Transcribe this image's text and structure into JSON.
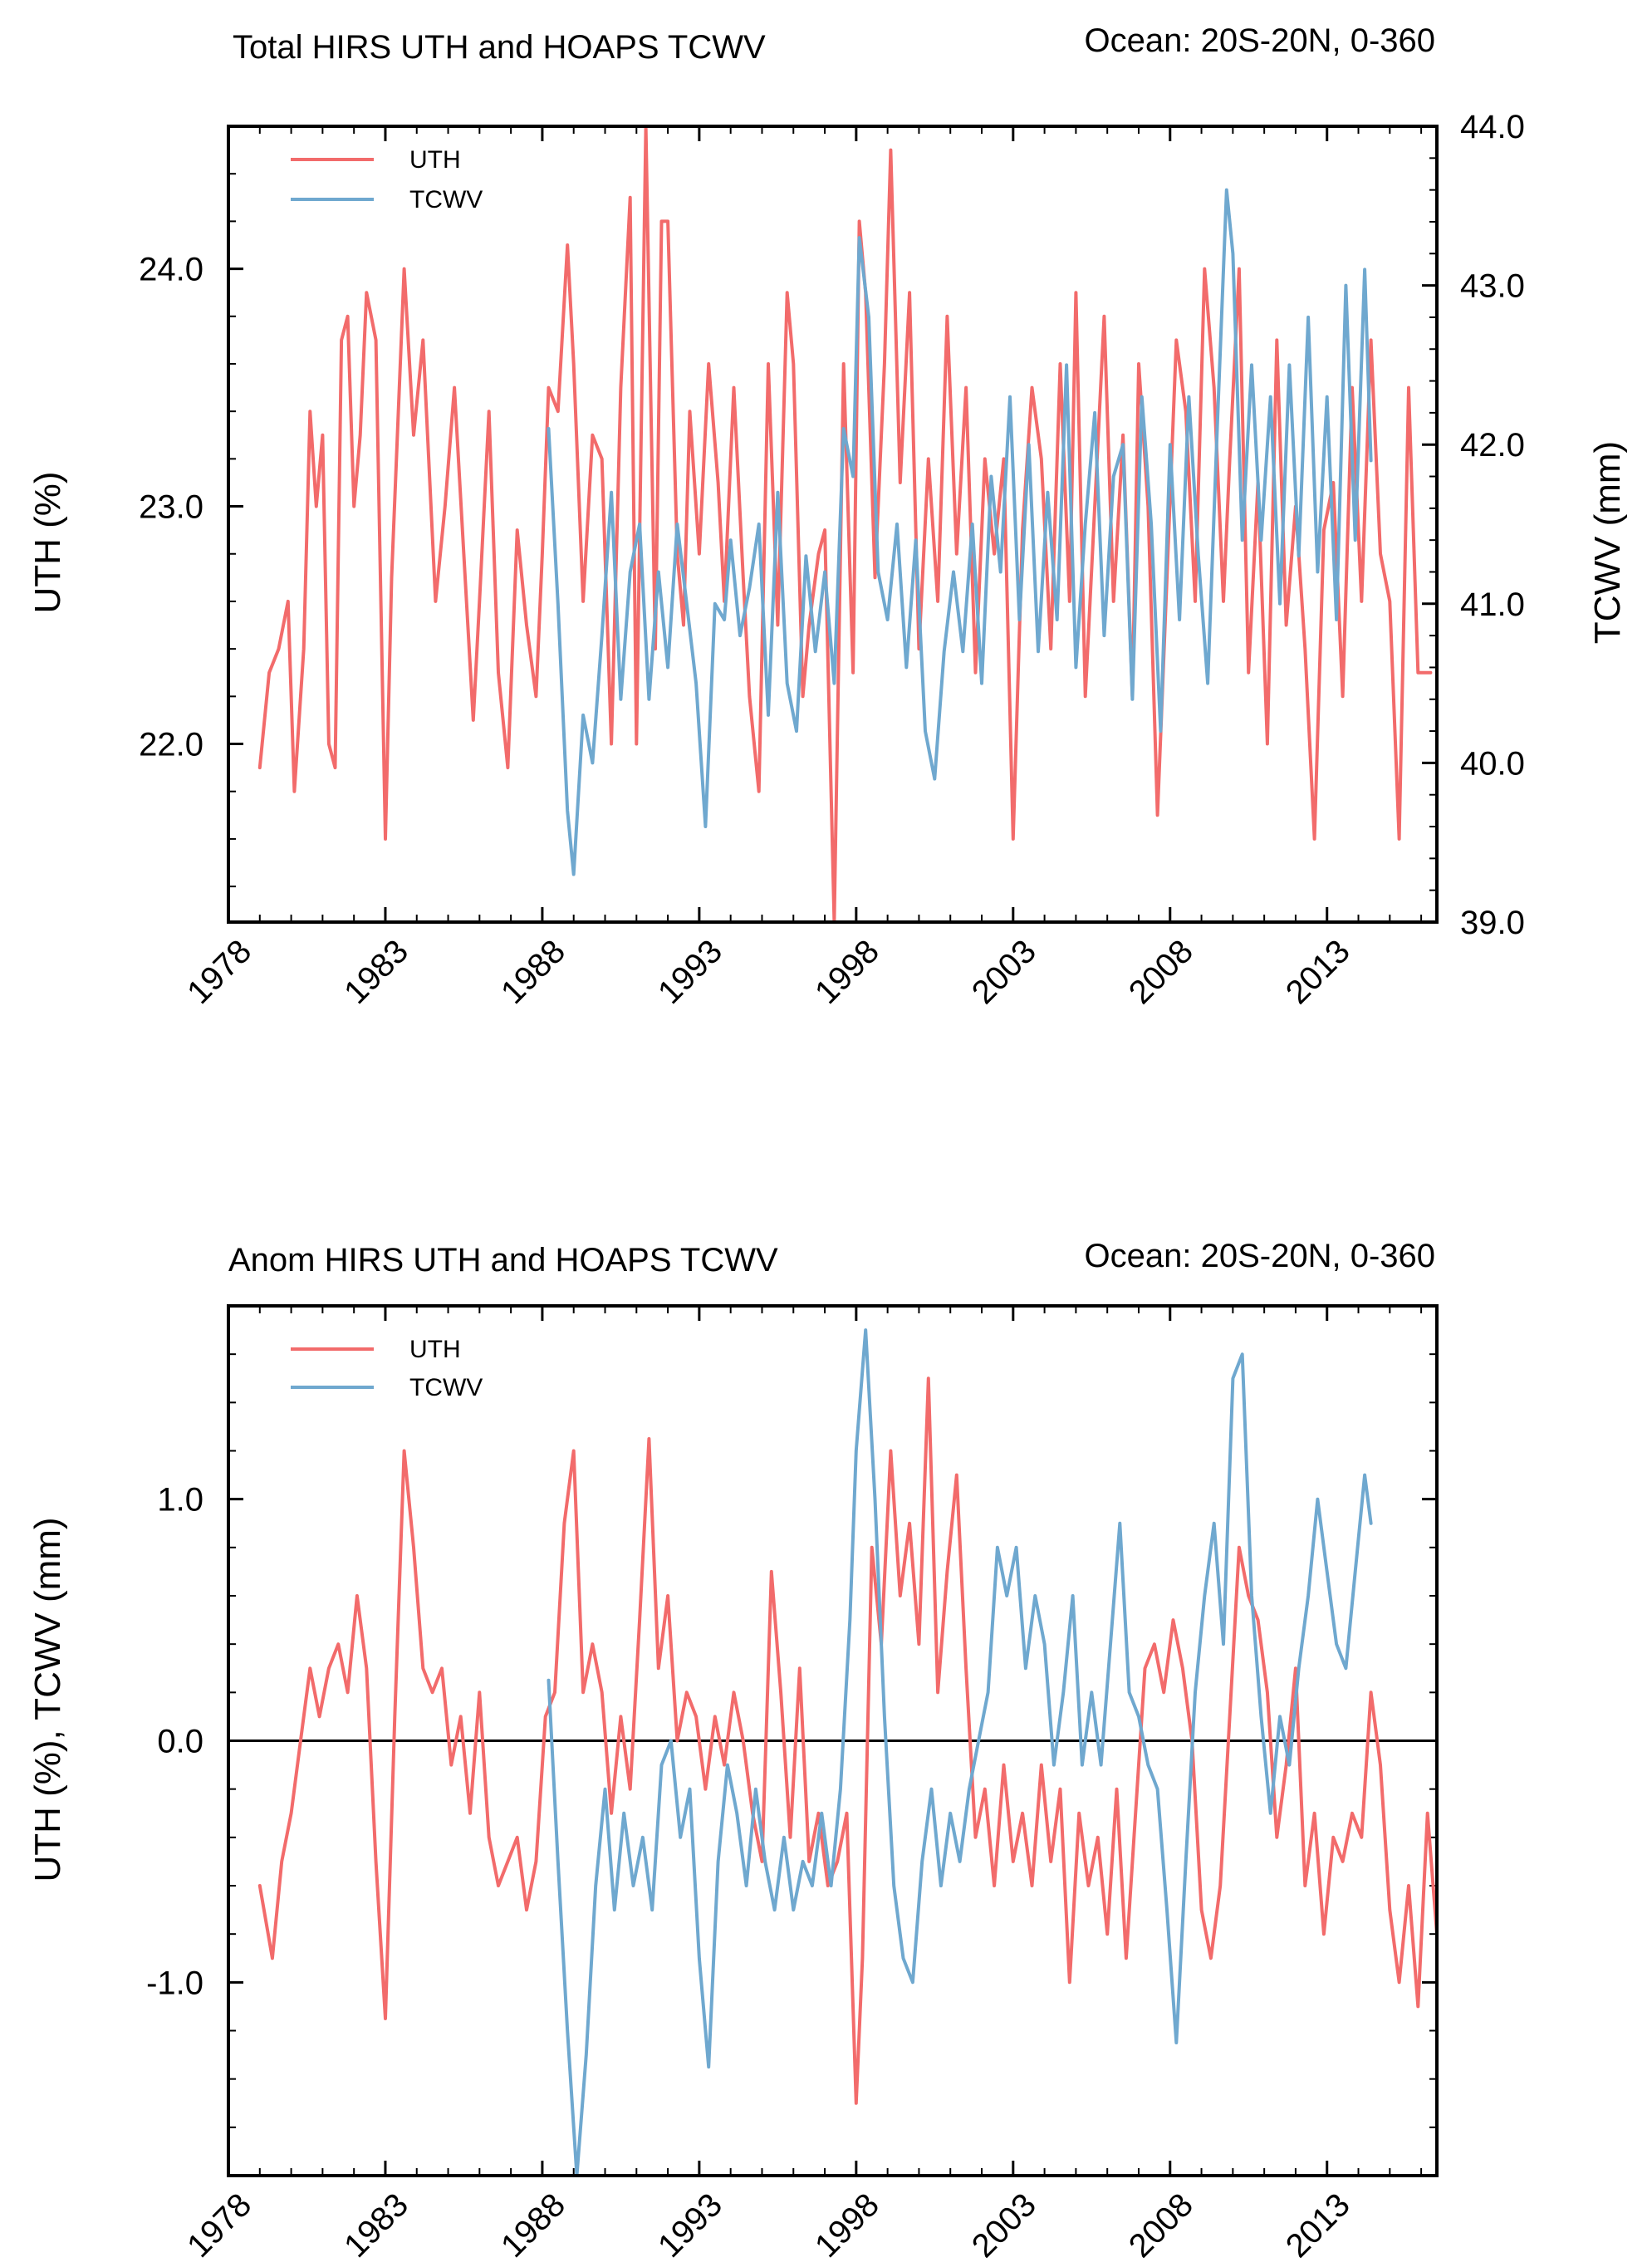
{
  "colors": {
    "uth": "#f26b6b",
    "tcwv": "#6fa8cf",
    "axis": "#000000",
    "zero_line": "#000000"
  },
  "chart_data": [
    {
      "type": "line",
      "title": "Total HIRS UTH and HOAPS TCWV",
      "region_label": "Ocean: 20S-20N, 0-360",
      "xlabel": "",
      "ylabel": "UTH (%)",
      "y2label": "TCWV (mm)",
      "xlim": [
        1978,
        2016.5
      ],
      "ylim": [
        21.25,
        24.6
      ],
      "y2lim": [
        39.0,
        44.0
      ],
      "x_ticks": [
        "1978",
        "1983",
        "1988",
        "1993",
        "1998",
        "2003",
        "2008",
        "2013"
      ],
      "y_ticks": [
        "22.0",
        "23.0",
        "24.0"
      ],
      "y2_ticks": [
        "39.0",
        "40.0",
        "41.0",
        "42.0",
        "43.0",
        "44.0"
      ],
      "legend": [
        "UTH",
        "TCWV"
      ],
      "legend_position": "top-left",
      "series": [
        {
          "name": "UTH",
          "axis": "left",
          "x": [
            1979.0,
            1979.3,
            1979.6,
            1979.9,
            1980.1,
            1980.4,
            1980.6,
            1980.8,
            1981.0,
            1981.2,
            1981.4,
            1981.6,
            1981.8,
            1982.0,
            1982.2,
            1982.4,
            1982.7,
            1983.0,
            1983.2,
            1983.6,
            1983.9,
            1984.2,
            1984.6,
            1984.9,
            1985.2,
            1985.5,
            1985.8,
            1986.0,
            1986.3,
            1986.6,
            1986.9,
            1987.2,
            1987.5,
            1987.8,
            1988.0,
            1988.2,
            1988.5,
            1988.8,
            1989.0,
            1989.3,
            1989.6,
            1989.9,
            1990.2,
            1990.5,
            1990.8,
            1991.0,
            1991.3,
            1991.6,
            1991.8,
            1992.0,
            1992.3,
            1992.5,
            1992.7,
            1993.0,
            1993.3,
            1993.6,
            1993.8,
            1994.1,
            1994.4,
            1994.6,
            1994.9,
            1995.2,
            1995.5,
            1995.8,
            1996.0,
            1996.3,
            1996.5,
            1996.8,
            1997.0,
            1997.3,
            1997.6,
            1997.9,
            1998.1,
            1998.3,
            1998.6,
            1998.9,
            1999.1,
            1999.4,
            1999.7,
            2000.0,
            2000.3,
            2000.6,
            2000.9,
            2001.2,
            2001.5,
            2001.8,
            2002.1,
            2002.4,
            2002.7,
            2003.0,
            2003.3,
            2003.6,
            2003.9,
            2004.2,
            2004.5,
            2004.8,
            2005.0,
            2005.3,
            2005.6,
            2005.9,
            2006.2,
            2006.5,
            2006.8,
            2007.0,
            2007.3,
            2007.6,
            2007.9,
            2008.2,
            2008.5,
            2008.8,
            2009.1,
            2009.4,
            2009.7,
            2009.9,
            2010.2,
            2010.5,
            2010.8,
            2011.1,
            2011.4,
            2011.7,
            2012.0,
            2012.3,
            2012.6,
            2012.9,
            2013.2,
            2013.5,
            2013.8,
            2014.1,
            2014.4,
            2014.7,
            2015.0,
            2015.3,
            2015.6,
            2015.9,
            2016.1,
            2016.3
          ],
          "values": [
            21.9,
            22.3,
            22.4,
            22.6,
            21.8,
            22.4,
            23.4,
            23.0,
            23.3,
            22.0,
            21.9,
            23.7,
            23.8,
            23.0,
            23.3,
            23.9,
            23.7,
            21.6,
            22.7,
            24.0,
            23.3,
            23.7,
            22.6,
            23.0,
            23.5,
            22.8,
            22.1,
            22.6,
            23.4,
            22.3,
            21.9,
            22.9,
            22.5,
            22.2,
            22.8,
            23.5,
            23.4,
            24.1,
            23.6,
            22.6,
            23.3,
            23.2,
            22.0,
            23.5,
            24.3,
            22.0,
            24.6,
            22.4,
            24.2,
            24.2,
            22.8,
            22.5,
            23.4,
            22.8,
            23.6,
            23.1,
            22.6,
            23.5,
            22.7,
            22.2,
            21.8,
            23.6,
            22.5,
            23.9,
            23.6,
            22.2,
            22.5,
            22.8,
            22.9,
            21.25,
            23.6,
            22.3,
            24.2,
            23.9,
            22.7,
            23.6,
            24.5,
            23.1,
            23.9,
            22.4,
            23.2,
            22.6,
            23.8,
            22.8,
            23.5,
            22.3,
            23.2,
            22.8,
            23.2,
            21.6,
            22.9,
            23.5,
            23.2,
            22.4,
            23.6,
            22.6,
            23.9,
            22.2,
            23.0,
            23.8,
            22.6,
            23.3,
            22.2,
            23.6,
            23.0,
            21.7,
            22.7,
            23.7,
            23.4,
            22.6,
            24.0,
            23.5,
            22.6,
            23.2,
            24.0,
            22.3,
            23.1,
            22.0,
            23.7,
            22.5,
            23.0,
            22.4,
            21.6,
            22.9,
            23.1,
            22.2,
            23.5,
            22.6,
            23.7,
            22.8,
            22.6,
            21.6,
            23.5,
            22.3,
            22.3,
            22.3
          ]
        },
        {
          "name": "TCWV",
          "axis": "right",
          "x": [
            1988.2,
            1988.5,
            1988.8,
            1989.0,
            1989.3,
            1989.6,
            1989.9,
            1990.2,
            1990.5,
            1990.8,
            1991.1,
            1991.4,
            1991.7,
            1992.0,
            1992.3,
            1992.6,
            1992.9,
            1993.2,
            1993.5,
            1993.8,
            1994.0,
            1994.3,
            1994.6,
            1994.9,
            1995.2,
            1995.5,
            1995.8,
            1996.1,
            1996.4,
            1996.7,
            1997.0,
            1997.3,
            1997.6,
            1997.9,
            1998.1,
            1998.4,
            1998.7,
            1999.0,
            1999.3,
            1999.6,
            1999.9,
            2000.2,
            2000.5,
            2000.8,
            2001.1,
            2001.4,
            2001.7,
            2002.0,
            2002.3,
            2002.6,
            2002.9,
            2003.2,
            2003.5,
            2003.8,
            2004.1,
            2004.4,
            2004.7,
            2005.0,
            2005.3,
            2005.6,
            2005.9,
            2006.2,
            2006.5,
            2006.8,
            2007.1,
            2007.4,
            2007.7,
            2008.0,
            2008.3,
            2008.6,
            2008.9,
            2009.2,
            2009.5,
            2009.8,
            2010.0,
            2010.3,
            2010.6,
            2010.9,
            2011.2,
            2011.5,
            2011.8,
            2012.1,
            2012.4,
            2012.7,
            2013.0,
            2013.3,
            2013.6,
            2013.9,
            2014.2,
            2014.4
          ],
          "values": [
            42.1,
            41.0,
            39.7,
            39.3,
            40.3,
            40.0,
            40.8,
            41.7,
            40.4,
            41.2,
            41.5,
            40.4,
            41.2,
            40.6,
            41.5,
            41.0,
            40.5,
            39.6,
            41.0,
            40.9,
            41.4,
            40.8,
            41.1,
            41.5,
            40.3,
            41.7,
            40.5,
            40.2,
            41.3,
            40.7,
            41.2,
            40.5,
            42.1,
            41.8,
            43.3,
            42.8,
            41.2,
            40.9,
            41.5,
            40.6,
            41.4,
            40.2,
            39.9,
            40.7,
            41.2,
            40.7,
            41.5,
            40.5,
            41.8,
            41.2,
            42.3,
            40.9,
            42.0,
            40.7,
            41.7,
            40.9,
            42.5,
            40.6,
            41.5,
            42.2,
            40.8,
            41.8,
            42.0,
            40.4,
            42.3,
            41.5,
            40.2,
            42.0,
            40.9,
            42.3,
            41.3,
            40.5,
            42.1,
            43.6,
            43.2,
            41.4,
            42.5,
            41.4,
            42.3,
            41.0,
            42.5,
            41.3,
            42.8,
            41.2,
            42.3,
            40.9,
            43.0,
            41.4,
            43.1,
            41.9
          ]
        }
      ]
    },
    {
      "type": "line",
      "title": "Anom HIRS UTH and HOAPS TCWV",
      "region_label": "Ocean: 20S-20N, 0-360",
      "xlabel": "",
      "ylabel": "UTH (%), TCWV (mm)",
      "xlim": [
        1978,
        2016.5
      ],
      "ylim": [
        -1.8,
        1.8
      ],
      "x_ticks": [
        "1978",
        "1983",
        "1988",
        "1993",
        "1998",
        "2003",
        "2008",
        "2013"
      ],
      "y_ticks": [
        "-1.0",
        "0.0",
        "1.0"
      ],
      "legend": [
        "UTH",
        "TCWV"
      ],
      "legend_position": "top-left",
      "zero_line": true,
      "series": [
        {
          "name": "UTH",
          "x": [
            1979.0,
            1979.4,
            1979.7,
            1980.0,
            1980.3,
            1980.6,
            1980.9,
            1981.2,
            1981.5,
            1981.8,
            1982.1,
            1982.4,
            1982.7,
            1983.0,
            1983.3,
            1983.6,
            1983.9,
            1984.2,
            1984.5,
            1984.8,
            1985.1,
            1985.4,
            1985.7,
            1986.0,
            1986.3,
            1986.6,
            1986.9,
            1987.2,
            1987.5,
            1987.8,
            1988.1,
            1988.4,
            1988.7,
            1989.0,
            1989.3,
            1989.6,
            1989.9,
            1990.2,
            1990.5,
            1990.8,
            1991.1,
            1991.4,
            1991.7,
            1992.0,
            1992.3,
            1992.6,
            1992.9,
            1993.2,
            1993.5,
            1993.8,
            1994.1,
            1994.4,
            1994.7,
            1995.0,
            1995.3,
            1995.6,
            1995.9,
            1996.2,
            1996.5,
            1996.8,
            1997.1,
            1997.4,
            1997.7,
            1998.0,
            1998.2,
            1998.5,
            1998.8,
            1999.1,
            1999.4,
            1999.7,
            2000.0,
            2000.3,
            2000.6,
            2000.9,
            2001.2,
            2001.5,
            2001.8,
            2002.1,
            2002.4,
            2002.7,
            2003.0,
            2003.3,
            2003.6,
            2003.9,
            2004.2,
            2004.5,
            2004.8,
            2005.1,
            2005.4,
            2005.7,
            2006.0,
            2006.3,
            2006.6,
            2006.9,
            2007.2,
            2007.5,
            2007.8,
            2008.1,
            2008.4,
            2008.7,
            2009.0,
            2009.3,
            2009.6,
            2009.9,
            2010.2,
            2010.5,
            2010.8,
            2011.1,
            2011.4,
            2011.7,
            2012.0,
            2012.3,
            2012.6,
            2012.9,
            2013.2,
            2013.5,
            2013.8,
            2014.1,
            2014.4,
            2014.7,
            2015.0,
            2015.3,
            2015.6,
            2015.9,
            2016.2,
            2016.5
          ],
          "values": [
            -0.6,
            -0.9,
            -0.5,
            -0.3,
            0.0,
            0.3,
            0.1,
            0.3,
            0.4,
            0.2,
            0.6,
            0.3,
            -0.5,
            -1.15,
            0.1,
            1.2,
            0.8,
            0.3,
            0.2,
            0.3,
            -0.1,
            0.1,
            -0.3,
            0.2,
            -0.4,
            -0.6,
            -0.5,
            -0.4,
            -0.7,
            -0.5,
            0.1,
            0.2,
            0.9,
            1.2,
            0.2,
            0.4,
            0.2,
            -0.3,
            0.1,
            -0.2,
            0.5,
            1.25,
            0.3,
            0.6,
            0.0,
            0.2,
            0.1,
            -0.2,
            0.1,
            -0.1,
            0.2,
            0.0,
            -0.3,
            -0.5,
            0.7,
            0.2,
            -0.4,
            0.3,
            -0.5,
            -0.3,
            -0.6,
            -0.5,
            -0.3,
            -1.5,
            -0.9,
            0.8,
            0.4,
            1.2,
            0.6,
            0.9,
            0.4,
            1.5,
            0.2,
            0.7,
            1.1,
            0.3,
            -0.4,
            -0.2,
            -0.6,
            -0.1,
            -0.5,
            -0.3,
            -0.6,
            -0.1,
            -0.5,
            -0.2,
            -1.0,
            -0.3,
            -0.6,
            -0.4,
            -0.8,
            -0.2,
            -0.9,
            -0.3,
            0.3,
            0.4,
            0.2,
            0.5,
            0.3,
            0.0,
            -0.7,
            -0.9,
            -0.6,
            0.1,
            0.8,
            0.6,
            0.5,
            0.2,
            -0.4,
            -0.1,
            0.3,
            -0.6,
            -0.3,
            -0.8,
            -0.4,
            -0.5,
            -0.3,
            -0.4,
            0.2,
            -0.1,
            -0.7,
            -1.0,
            -0.6,
            -1.1,
            -0.3,
            -0.8
          ]
        },
        {
          "name": "TCWV",
          "x": [
            1988.2,
            1988.5,
            1988.8,
            1989.1,
            1989.4,
            1989.7,
            1990.0,
            1990.3,
            1990.6,
            1990.9,
            1991.2,
            1991.5,
            1991.8,
            1992.1,
            1992.4,
            1992.7,
            1993.0,
            1993.3,
            1993.6,
            1993.9,
            1994.2,
            1994.5,
            1994.8,
            1995.1,
            1995.4,
            1995.7,
            1996.0,
            1996.3,
            1996.6,
            1996.9,
            1997.2,
            1997.5,
            1997.8,
            1998.0,
            1998.3,
            1998.6,
            1998.9,
            1999.2,
            1999.5,
            1999.8,
            2000.1,
            2000.4,
            2000.7,
            2001.0,
            2001.3,
            2001.6,
            2001.9,
            2002.2,
            2002.5,
            2002.8,
            2003.1,
            2003.4,
            2003.7,
            2004.0,
            2004.3,
            2004.6,
            2004.9,
            2005.2,
            2005.5,
            2005.8,
            2006.1,
            2006.4,
            2006.7,
            2007.0,
            2007.3,
            2007.6,
            2007.9,
            2008.2,
            2008.5,
            2008.8,
            2009.1,
            2009.4,
            2009.7,
            2010.0,
            2010.3,
            2010.6,
            2010.9,
            2011.2,
            2011.5,
            2011.8,
            2012.1,
            2012.4,
            2012.7,
            2013.0,
            2013.3,
            2013.6,
            2013.9,
            2014.2,
            2014.4
          ],
          "values": [
            0.25,
            -0.5,
            -1.2,
            -1.8,
            -1.3,
            -0.6,
            -0.2,
            -0.7,
            -0.3,
            -0.6,
            -0.4,
            -0.7,
            -0.1,
            0.0,
            -0.4,
            -0.2,
            -0.9,
            -1.35,
            -0.5,
            -0.1,
            -0.3,
            -0.6,
            -0.2,
            -0.5,
            -0.7,
            -0.4,
            -0.7,
            -0.5,
            -0.6,
            -0.3,
            -0.6,
            -0.2,
            0.5,
            1.2,
            1.7,
            1.0,
            0.1,
            -0.6,
            -0.9,
            -1.0,
            -0.5,
            -0.2,
            -0.6,
            -0.3,
            -0.5,
            -0.2,
            0.0,
            0.2,
            0.8,
            0.6,
            0.8,
            0.3,
            0.6,
            0.4,
            -0.1,
            0.2,
            0.6,
            -0.1,
            0.2,
            -0.1,
            0.4,
            0.9,
            0.2,
            0.1,
            -0.1,
            -0.2,
            -0.7,
            -1.25,
            -0.5,
            0.2,
            0.6,
            0.9,
            0.4,
            1.5,
            1.6,
            0.6,
            0.1,
            -0.3,
            0.1,
            -0.1,
            0.3,
            0.6,
            1.0,
            0.7,
            0.4,
            0.3,
            0.7,
            1.1,
            0.9
          ]
        }
      ]
    }
  ]
}
